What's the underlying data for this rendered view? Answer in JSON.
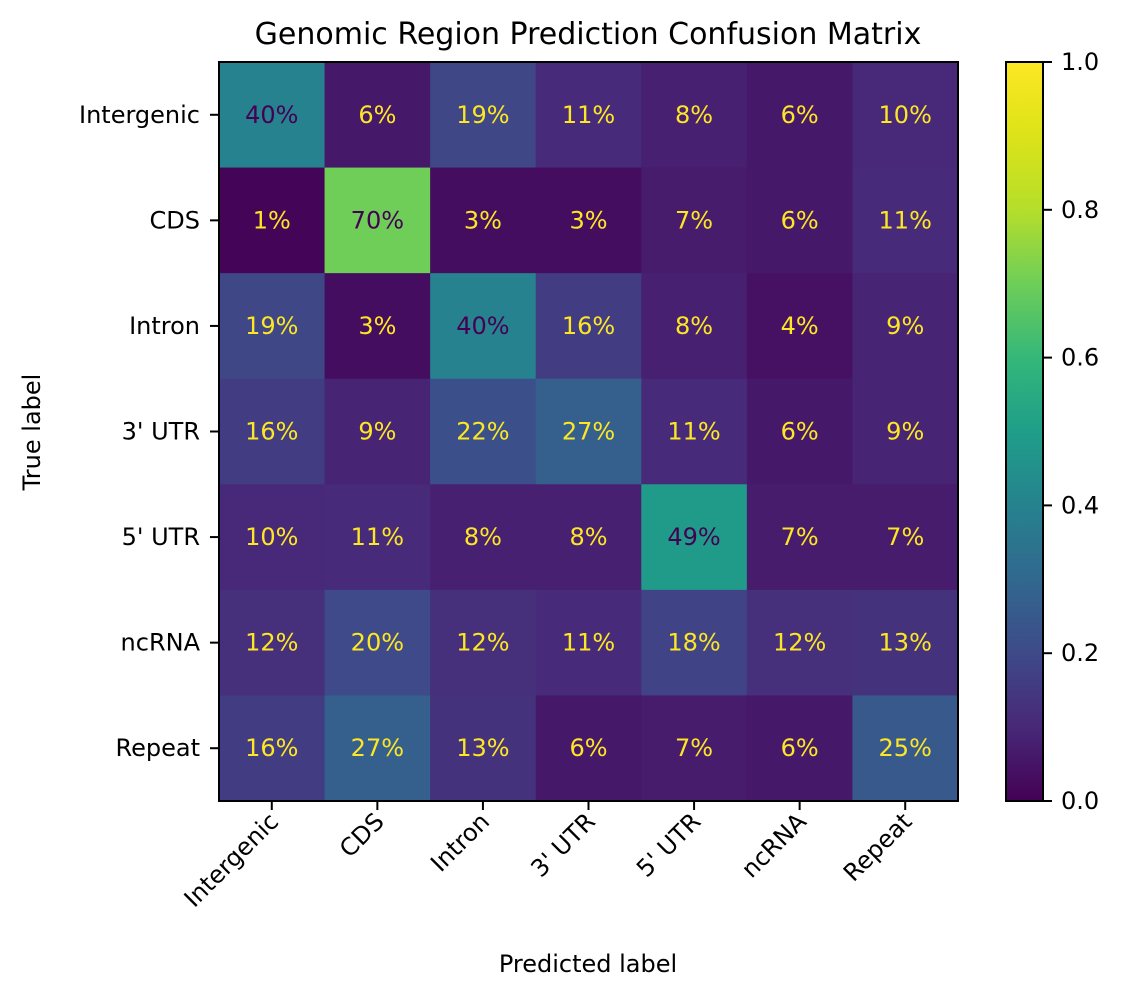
{
  "chart_data": {
    "type": "heatmap",
    "title": "Genomic Region Prediction Confusion Matrix",
    "xlabel": "Predicted label",
    "ylabel": "True label",
    "row_labels": [
      "Intergenic",
      "CDS",
      "Intron",
      "3' UTR",
      "5' UTR",
      "ncRNA",
      "Repeat"
    ],
    "col_labels": [
      "Intergenic",
      "CDS",
      "Intron",
      "3' UTR",
      "5' UTR",
      "ncRNA",
      "Repeat"
    ],
    "values": [
      [
        0.4,
        0.06,
        0.19,
        0.11,
        0.08,
        0.06,
        0.1
      ],
      [
        0.01,
        0.7,
        0.03,
        0.03,
        0.07,
        0.06,
        0.11
      ],
      [
        0.19,
        0.03,
        0.4,
        0.16,
        0.08,
        0.04,
        0.09
      ],
      [
        0.16,
        0.09,
        0.22,
        0.27,
        0.11,
        0.06,
        0.09
      ],
      [
        0.1,
        0.11,
        0.08,
        0.08,
        0.49,
        0.07,
        0.07
      ],
      [
        0.12,
        0.2,
        0.12,
        0.11,
        0.18,
        0.12,
        0.13
      ],
      [
        0.16,
        0.27,
        0.13,
        0.06,
        0.07,
        0.06,
        0.25
      ]
    ],
    "cell_labels": [
      [
        "40%",
        "6%",
        "19%",
        "11%",
        "8%",
        "6%",
        "10%"
      ],
      [
        "1%",
        "70%",
        "3%",
        "3%",
        "7%",
        "6%",
        "11%"
      ],
      [
        "19%",
        "3%",
        "40%",
        "16%",
        "8%",
        "4%",
        "9%"
      ],
      [
        "16%",
        "9%",
        "22%",
        "27%",
        "11%",
        "6%",
        "9%"
      ],
      [
        "10%",
        "11%",
        "8%",
        "8%",
        "49%",
        "7%",
        "7%"
      ],
      [
        "12%",
        "20%",
        "12%",
        "11%",
        "18%",
        "12%",
        "13%"
      ],
      [
        "16%",
        "27%",
        "13%",
        "6%",
        "7%",
        "6%",
        "25%"
      ]
    ],
    "colormap": "viridis",
    "vmin": 0.0,
    "vmax": 1.0,
    "colorbar_ticks": [
      "0.0",
      "0.2",
      "0.4",
      "0.6",
      "0.8",
      "1.0"
    ],
    "text_color_light": "#fde725",
    "text_color_dark": "#440154",
    "grid": false,
    "legend": "colorbar-right"
  }
}
